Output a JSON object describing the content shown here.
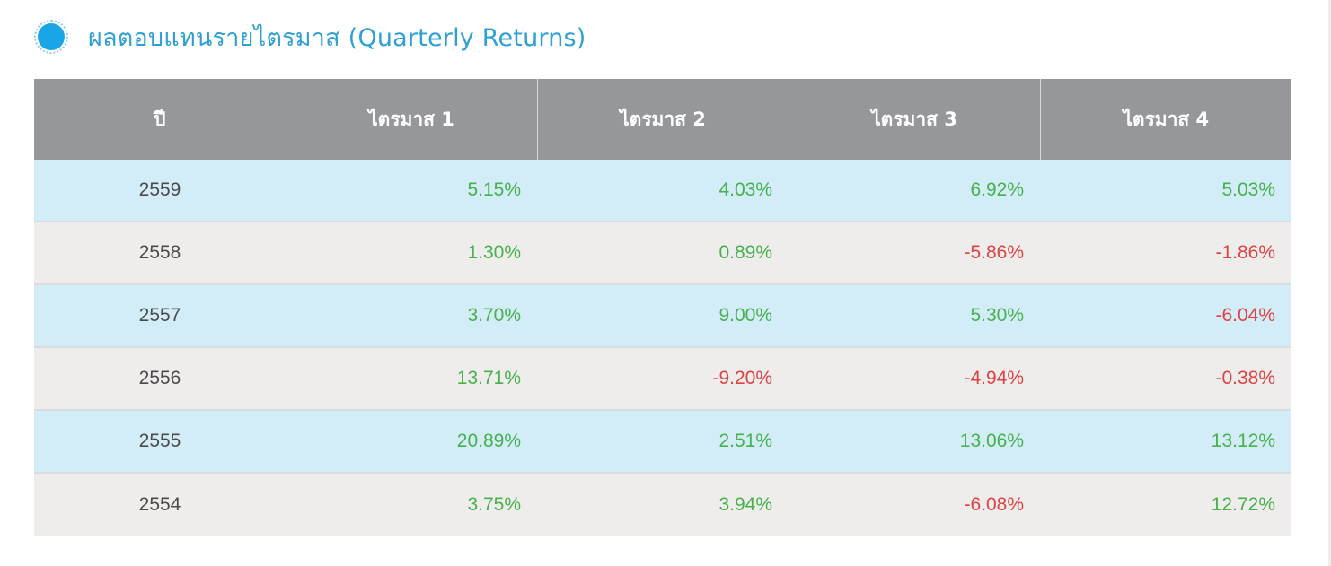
{
  "section": {
    "title": "ผลตอบแทนรายไตรมาส (Quarterly Returns)",
    "icon": "circle-bullet-icon"
  },
  "table": {
    "headers": [
      "ปี",
      "ไตรมาส 1",
      "ไตรมาส 2",
      "ไตรมาส 3",
      "ไตรมาส 4"
    ],
    "rows": [
      {
        "year": "2559",
        "q": [
          "5.15%",
          "4.03%",
          "6.92%",
          "5.03%"
        ]
      },
      {
        "year": "2558",
        "q": [
          "1.30%",
          "0.89%",
          "-5.86%",
          "-1.86%"
        ]
      },
      {
        "year": "2557",
        "q": [
          "3.70%",
          "9.00%",
          "5.30%",
          "-6.04%"
        ]
      },
      {
        "year": "2556",
        "q": [
          "13.71%",
          "-9.20%",
          "-4.94%",
          "-0.38%"
        ]
      },
      {
        "year": "2555",
        "q": [
          "20.89%",
          "2.51%",
          "13.06%",
          "13.12%"
        ]
      },
      {
        "year": "2554",
        "q": [
          "3.75%",
          "3.94%",
          "-6.08%",
          "12.72%"
        ]
      }
    ]
  },
  "colors": {
    "positive": "#45b24b",
    "negative": "#e04242",
    "header_bg": "#96979a",
    "row_blue": "#d2ecf8",
    "row_gray": "#efecec",
    "title": "#2fa0d6"
  }
}
